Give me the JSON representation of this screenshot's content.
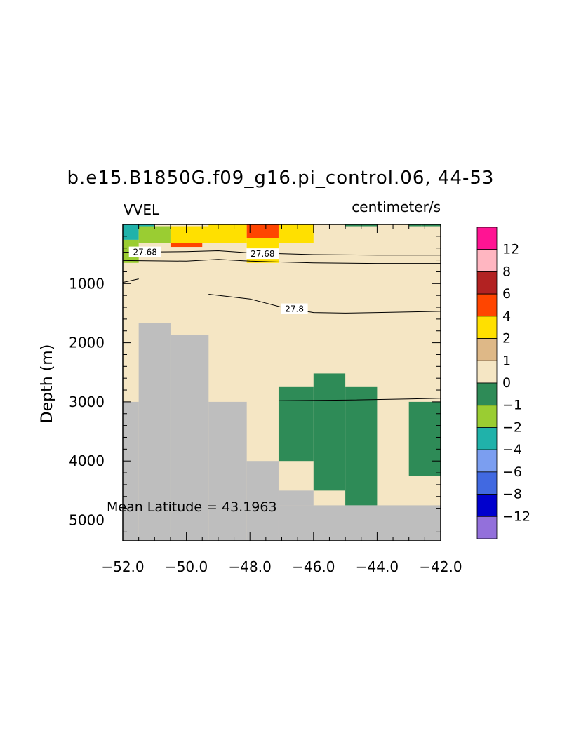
{
  "chart_data": {
    "type": "heatmap",
    "title": "b.e15.B1850G.f09_g16.pi_control.06, 44-53",
    "variable_label": "VVEL",
    "units_label": "centimeter/s",
    "ylabel": "Depth (m)",
    "xlabel": "",
    "xlim": [
      -52,
      -42
    ],
    "ylim": [
      5350,
      0
    ],
    "x_ticks": [
      -52,
      -50,
      -48,
      -46,
      -44,
      -42
    ],
    "x_tick_labels": [
      "−52.0",
      "−50.0",
      "−48.0",
      "−46.0",
      "−44.0",
      "−42.0"
    ],
    "y_ticks": [
      1000,
      2000,
      3000,
      4000,
      5000
    ],
    "y_tick_labels": [
      "1000",
      "2000",
      "3000",
      "4000",
      "5000"
    ],
    "annotation": "Mean Latitude = 43.1963",
    "colorbar": {
      "labels": [
        "12",
        "8",
        "6",
        "4",
        "2",
        "1",
        "0",
        "−1",
        "−2",
        "−4",
        "−6",
        "−8",
        "−12"
      ],
      "colors": [
        "#ff1493",
        "#ffb6c1",
        "#b22222",
        "#ff4500",
        "#ffe000",
        "#deb887",
        "#f5e6c4",
        "#2e8b57",
        "#9acd32",
        "#20b2aa",
        "#7b9ef0",
        "#4169e1",
        "#0000cd",
        "#9370db"
      ]
    },
    "background_color": "#f5e6c4",
    "land_color": "#bebebe",
    "land_mask": [
      {
        "x0": -52.0,
        "x1": -51.5,
        "d0": 3000,
        "d1": 5350
      },
      {
        "x0": -51.5,
        "x1": -50.5,
        "d0": 1670,
        "d1": 5350
      },
      {
        "x0": -50.5,
        "x1": -49.3,
        "d0": 1870,
        "d1": 5350
      },
      {
        "x0": -49.3,
        "x1": -48.1,
        "d0": 3000,
        "d1": 5350
      },
      {
        "x0": -48.1,
        "x1": -47.1,
        "d0": 4000,
        "d1": 5350
      },
      {
        "x0": -47.1,
        "x1": -42.0,
        "d0": 4750,
        "d1": 5350
      },
      {
        "x0": -47.1,
        "x1": -46.0,
        "d0": 4500,
        "d1": 4750
      }
    ],
    "cells": [
      {
        "x0": -52.0,
        "x1": -51.5,
        "d0": 0,
        "d1": 260,
        "value": -4
      },
      {
        "x0": -52.0,
        "x1": -51.5,
        "d0": 260,
        "d1": 650,
        "value": -2
      },
      {
        "x0": -51.5,
        "x1": -50.5,
        "d0": 30,
        "d1": 320,
        "value": -2
      },
      {
        "x0": -50.5,
        "x1": -48.1,
        "d0": 30,
        "d1": 320,
        "value": 2
      },
      {
        "x0": -49.3,
        "x1": -48.1,
        "d0": 0,
        "d1": 30,
        "value": 2
      },
      {
        "x0": -50.5,
        "x1": -49.5,
        "d0": 320,
        "d1": 380,
        "value": 4
      },
      {
        "x0": -48.1,
        "x1": -47.1,
        "d0": 0,
        "d1": 230,
        "value": 4
      },
      {
        "x0": -48.1,
        "x1": -47.1,
        "d0": 230,
        "d1": 650,
        "value": 2
      },
      {
        "x0": -47.1,
        "x1": -46.0,
        "d0": 0,
        "d1": 320,
        "value": 2
      },
      {
        "x0": -51.5,
        "x1": -51.0,
        "d0": 0,
        "d1": 30,
        "value": -4
      },
      {
        "x0": -45.0,
        "x1": -44.0,
        "d0": 0,
        "d1": 30,
        "value": -1
      },
      {
        "x0": -43.0,
        "x1": -42.6,
        "d0": 0,
        "d1": 30,
        "value": -1
      },
      {
        "x0": -42.6,
        "x1": -42.0,
        "d0": 0,
        "d1": 30,
        "value": -1
      },
      {
        "x0": -47.1,
        "x1": -46.0,
        "d0": 2750,
        "d1": 4000,
        "value": -1
      },
      {
        "x0": -46.0,
        "x1": -45.0,
        "d0": 2520,
        "d1": 4500,
        "value": -1
      },
      {
        "x0": -45.0,
        "x1": -44.0,
        "d0": 2750,
        "d1": 4750,
        "value": -1
      },
      {
        "x0": -43.0,
        "x1": -42.0,
        "d0": 3000,
        "d1": 4250,
        "value": -1
      }
    ],
    "contours": [
      {
        "label": "27.68",
        "label_at": [
          -51.3,
          470
        ],
        "points": [
          [
            -52.0,
            470
          ],
          [
            -50.0,
            460
          ],
          [
            -49.0,
            445
          ],
          [
            -48.0,
            480
          ],
          [
            -46.0,
            510
          ],
          [
            -44.0,
            520
          ],
          [
            -42.0,
            520
          ]
        ]
      },
      {
        "label": "27.68",
        "label_at": [
          -47.6,
          500
        ],
        "points": [
          [
            -52.0,
            610
          ],
          [
            -50.0,
            620
          ],
          [
            -49.0,
            590
          ],
          [
            -48.0,
            620
          ],
          [
            -46.0,
            650
          ],
          [
            -44.0,
            660
          ],
          [
            -42.0,
            660
          ]
        ]
      },
      {
        "label": "",
        "label_at": null,
        "points": [
          [
            -52.0,
            980
          ],
          [
            -51.5,
            920
          ]
        ]
      },
      {
        "label": "27.8",
        "label_at": [
          -46.6,
          1430
        ],
        "points": [
          [
            -49.3,
            1180
          ],
          [
            -48.0,
            1260
          ],
          [
            -47.0,
            1400
          ],
          [
            -46.0,
            1490
          ],
          [
            -45.0,
            1500
          ],
          [
            -44.0,
            1490
          ],
          [
            -42.0,
            1470
          ]
        ]
      },
      {
        "label": "",
        "label_at": null,
        "points": [
          [
            -47.1,
            2980
          ],
          [
            -45.0,
            2970
          ],
          [
            -43.0,
            2950
          ],
          [
            -42.0,
            2940
          ]
        ]
      }
    ]
  }
}
